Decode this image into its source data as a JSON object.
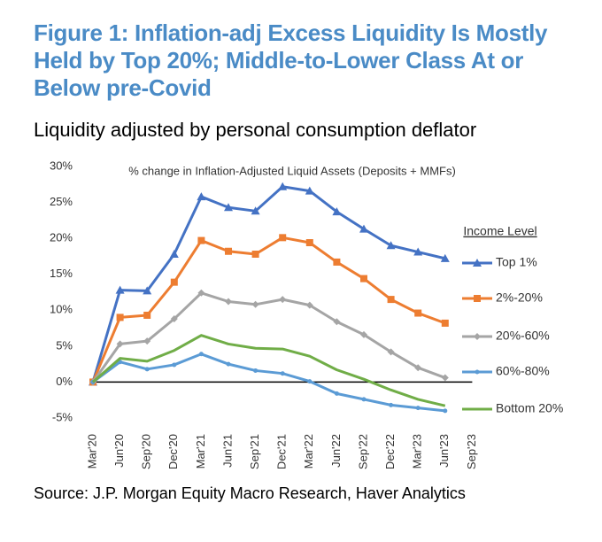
{
  "chart_data": {
    "type": "line",
    "title": "Figure 1: Inflation-adj Excess Liquidity Is Mostly Held by Top 20%; Middle-to-Lower Class At or Below pre-Covid",
    "subtitle": "Liquidity adjusted by personal consumption deflator",
    "chart_title": "% change in Inflation-Adjusted Liquid Assets (Deposits + MMFs)",
    "legend_title": "Income Level",
    "source": "Source: J.P. Morgan Equity Macro Research, Haver Analytics",
    "categories": [
      "Mar'20",
      "Jun'20",
      "Sep'20",
      "Dec'20",
      "Mar'21",
      "Jun'21",
      "Sep'21",
      "Dec'21",
      "Mar'22",
      "Jun'22",
      "Sep'22",
      "Dec'22",
      "Mar'23",
      "Jun'23",
      "Sep'23"
    ],
    "series": [
      {
        "name": "Top 1%",
        "color": "#4472c4",
        "marker": "triangle",
        "values": [
          0,
          12.8,
          12.7,
          17.8,
          25.8,
          24.3,
          23.8,
          27.2,
          26.6,
          23.7,
          21.3,
          19.0,
          18.1,
          17.2,
          null
        ]
      },
      {
        "name": "2%-20%",
        "color": "#ed7d31",
        "marker": "square",
        "values": [
          0,
          9.0,
          9.3,
          13.9,
          19.7,
          18.2,
          17.8,
          20.1,
          19.4,
          16.7,
          14.4,
          11.5,
          9.6,
          8.2,
          null
        ]
      },
      {
        "name": "20%-60%",
        "color": "#a5a5a5",
        "marker": "diamond",
        "values": [
          0,
          5.3,
          5.7,
          8.8,
          12.4,
          11.2,
          10.8,
          11.5,
          10.7,
          8.4,
          6.6,
          4.2,
          2.0,
          0.6,
          null
        ]
      },
      {
        "name": "60%-80%",
        "color": "#5b9bd5",
        "marker": "circle",
        "values": [
          0,
          2.8,
          1.8,
          2.4,
          3.9,
          2.5,
          1.6,
          1.2,
          0.1,
          -1.6,
          -2.4,
          -3.2,
          -3.6,
          -4.0,
          null
        ]
      },
      {
        "name": "Bottom 20%",
        "color": "#70ad47",
        "marker": "none",
        "values": [
          0,
          3.3,
          2.9,
          4.4,
          6.5,
          5.3,
          4.7,
          4.6,
          3.6,
          1.7,
          0.4,
          -1.1,
          -2.4,
          -3.3,
          null
        ]
      }
    ],
    "ylim": [
      -5,
      30
    ],
    "yticks": [
      {
        "value": 30,
        "label": "30%"
      },
      {
        "value": 25,
        "label": "25%"
      },
      {
        "value": 20,
        "label": "20%"
      },
      {
        "value": 15,
        "label": "15%"
      },
      {
        "value": 10,
        "label": "10%"
      },
      {
        "value": 5,
        "label": "5%"
      },
      {
        "value": 0,
        "label": "0%"
      },
      {
        "value": -5,
        "label": "-5%"
      }
    ],
    "grid": false,
    "legend": "right"
  }
}
